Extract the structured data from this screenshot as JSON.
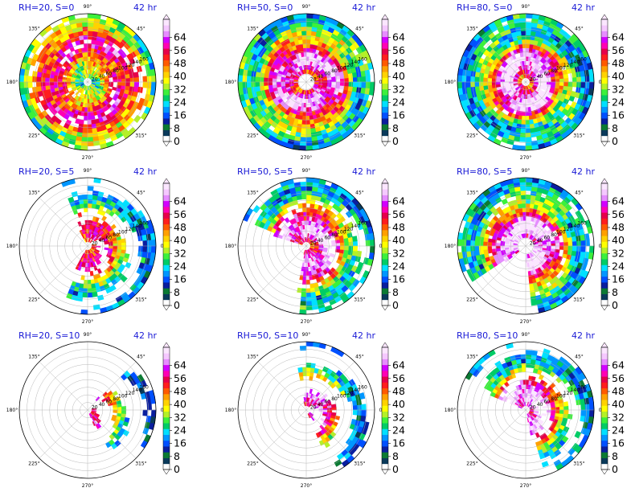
{
  "figure": {
    "panels": [
      {
        "id": "rh20-s0",
        "title": "RH=20, S=0",
        "time": "42 hr"
      },
      {
        "id": "rh50-s0",
        "title": "RH=50, S=0",
        "time": "42 hr"
      },
      {
        "id": "rh80-s0",
        "title": "RH=80, S=0",
        "time": "42 hr"
      },
      {
        "id": "rh20-s5",
        "title": "RH=20, S=5",
        "time": "42 hr"
      },
      {
        "id": "rh50-s5",
        "title": "RH=50, S=5",
        "time": "42 hr"
      },
      {
        "id": "rh80-s5",
        "title": "RH=80, S=5",
        "time": "42 hr"
      },
      {
        "id": "rh20-s10",
        "title": "RH=20, S=10",
        "time": "42 hr"
      },
      {
        "id": "rh50-s10",
        "title": "RH=50, S=10",
        "time": "42 hr"
      },
      {
        "id": "rh80-s10",
        "title": "RH=80, S=10",
        "time": "42 hr"
      }
    ],
    "angle_labels": [
      "90°",
      "45°",
      "0°",
      "315°",
      "270°",
      "225°",
      "180°",
      "135°"
    ],
    "radius_labels": [
      "20",
      "40",
      "60",
      "80",
      "100",
      "120",
      "140",
      "160"
    ],
    "colorbar": {
      "tick_labels": [
        "0",
        "8",
        "16",
        "24",
        "32",
        "40",
        "48",
        "56",
        "64"
      ],
      "colors": [
        "#ffffff",
        "#0a3a5a",
        "#0b7a33",
        "#0a1e9e",
        "#0050ff",
        "#0096ff",
        "#00e0ff",
        "#00cc66",
        "#3cf03c",
        "#b4f028",
        "#ffff00",
        "#ffd200",
        "#ffa000",
        "#ff5a00",
        "#ff1e1e",
        "#e6004a",
        "#ff00b4",
        "#d200ff",
        "#e68cff",
        "#f5c8ff",
        "#fbe6ff"
      ]
    }
  },
  "chart_data": {
    "type": "polar-field",
    "panel_count": 9,
    "rows": [
      "S=0",
      "S=5",
      "S=10"
    ],
    "columns": [
      "RH=20",
      "RH=50",
      "RH=80"
    ],
    "theta_ticks_deg": [
      0,
      45,
      90,
      135,
      180,
      225,
      270,
      315
    ],
    "r_ticks": [
      20,
      40,
      60,
      80,
      100,
      120,
      140,
      160
    ],
    "colorbar_range": [
      0,
      68
    ],
    "colorbar_ticks": [
      0,
      8,
      16,
      24,
      32,
      40,
      48,
      56,
      64
    ]
  }
}
